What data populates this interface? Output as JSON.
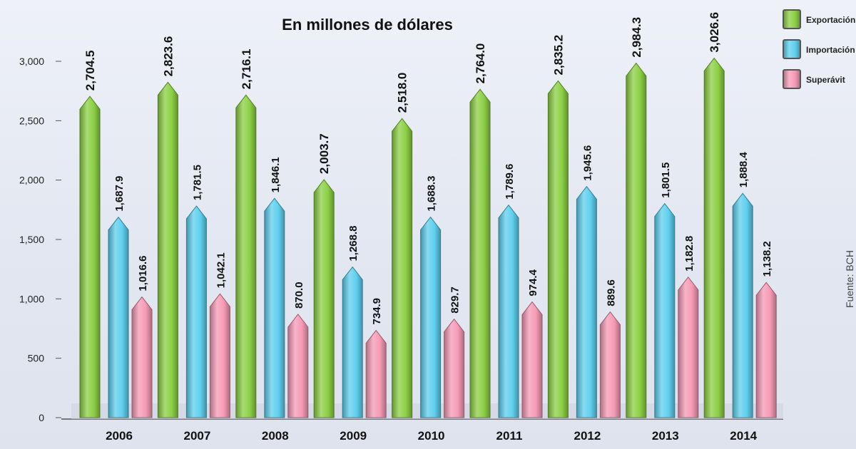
{
  "chart_data": {
    "type": "bar",
    "title": "En millones de dólares",
    "categories": [
      "2006",
      "2007",
      "2008",
      "2009",
      "2010",
      "2011",
      "2012",
      "2013",
      "2014"
    ],
    "series": [
      {
        "name": "Exportación",
        "color": "#8ccf45",
        "values": [
          2704.5,
          2823.6,
          2716.1,
          2003.7,
          2518.0,
          2764.0,
          2835.2,
          2984.3,
          3026.6
        ],
        "labels": [
          "2,704.5",
          "2,823.6",
          "2,716.1",
          "2,003.7",
          "2,518.0",
          "2,764.0",
          "2,835.2",
          "2,984.3",
          "3,026.6"
        ]
      },
      {
        "name": "Importación",
        "color": "#5fcfee",
        "values": [
          1687.9,
          1781.5,
          1846.1,
          1268.8,
          1688.3,
          1789.6,
          1945.6,
          1801.5,
          1888.4
        ],
        "labels": [
          "1,687.9",
          "1,781.5",
          "1,846.1",
          "1,268.8",
          "1,688.3",
          "1,789.6",
          "1,945.6",
          "1,801.5",
          "1,888.4"
        ]
      },
      {
        "name": "Superávit",
        "color": "#f59ab5",
        "values": [
          1016.6,
          1042.1,
          870.0,
          734.9,
          829.7,
          974.4,
          889.6,
          1182.8,
          1138.2
        ],
        "labels": [
          "1,016.6",
          "1,042.1",
          "870.0",
          "734.9",
          "829.7",
          "974.4",
          "889.6",
          "1,182.8",
          "1,138.2"
        ]
      }
    ],
    "ylim": [
      0,
      3000
    ],
    "yticks": [
      0,
      500,
      1000,
      1500,
      2000,
      2500,
      3000
    ],
    "ytick_labels": [
      "0",
      "500",
      "1,000",
      "1,500",
      "2,000",
      "2,500",
      "3,000"
    ],
    "legend_position": "top-right",
    "grid": false,
    "source": "Fuente: BCH"
  }
}
